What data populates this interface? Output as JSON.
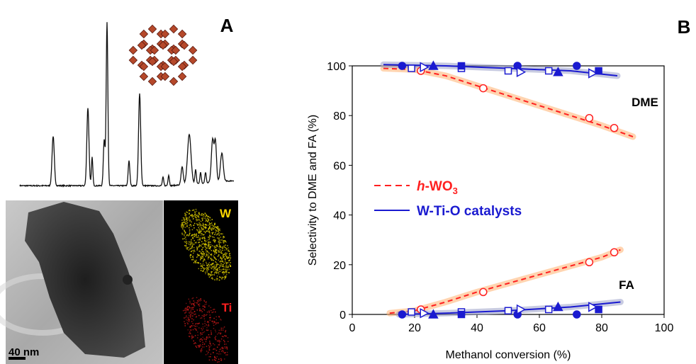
{
  "panels": {
    "label_a": "A",
    "label_b": "B",
    "map_w": "W",
    "map_ti": "Ti",
    "scale_bar": "40 nm"
  },
  "chart_data": {
    "type": "scatter",
    "xlabel": "Methanol conversion (%)",
    "ylabel": "Selectivity to DME and FA (%)",
    "xlim": [
      0,
      100
    ],
    "ylim": [
      0,
      100
    ],
    "xticks": [
      0,
      20,
      40,
      60,
      80,
      100
    ],
    "yticks": [
      0,
      20,
      40,
      60,
      80,
      100
    ],
    "annotations": [
      "DME",
      "FA"
    ],
    "series": [
      {
        "name": "h-WO3",
        "color": "#ff2020",
        "line": "dashed",
        "markers": [
          {
            "marker": "circle-open",
            "x": [
              22,
              42,
              76,
              84,
              22,
              42,
              76,
              84
            ],
            "values": [
              98,
              91,
              79,
              75,
              2,
              9,
              21,
              25
            ]
          }
        ],
        "fits": [
          {
            "x": [
              10,
              20,
              30,
              40,
              50,
              60,
              70,
              80,
              90
            ],
            "values": [
              99,
              98.5,
              96,
              92,
              88,
              84,
              80,
              76,
              71.5
            ]
          },
          {
            "x": [
              12,
              20,
              30,
              40,
              50,
              60,
              70,
              80,
              86
            ],
            "values": [
              0.5,
              1.5,
              5,
              9,
              12.5,
              16,
              19.5,
              23,
              26
            ]
          }
        ]
      },
      {
        "name": "W-Ti-O catalysts",
        "color": "#1a1ad0",
        "line": "solid",
        "markers": [
          {
            "marker": "circle",
            "x": [
              16,
              53,
              72,
              16,
              53,
              72
            ],
            "values": [
              100,
              100,
              100,
              0,
              0,
              0
            ]
          },
          {
            "marker": "square-open",
            "x": [
              19,
              35,
              50,
              63,
              19,
              35,
              50,
              63
            ],
            "values": [
              99,
              99,
              98,
              98,
              1,
              1,
              1.5,
              2
            ]
          },
          {
            "marker": "triangle-right-open",
            "x": [
              23,
              54,
              77,
              23,
              54,
              77
            ],
            "values": [
              99.5,
              97.5,
              97,
              0.5,
              2,
              3
            ]
          },
          {
            "marker": "triangle",
            "x": [
              26,
              66,
              26,
              66
            ],
            "values": [
              100,
              97.5,
              0,
              3
            ]
          },
          {
            "marker": "square",
            "x": [
              35,
              79,
              35,
              79
            ],
            "values": [
              100,
              98,
              0,
              2
            ]
          }
        ],
        "fits": [
          {
            "x": [
              10,
              30,
              50,
              70,
              85
            ],
            "values": [
              100.5,
              100,
              99,
              98,
              96
            ]
          },
          {
            "x": [
              15,
              30,
              50,
              70,
              86
            ],
            "values": [
              0,
              0.5,
              1.5,
              3,
              5
            ]
          }
        ]
      }
    ]
  }
}
